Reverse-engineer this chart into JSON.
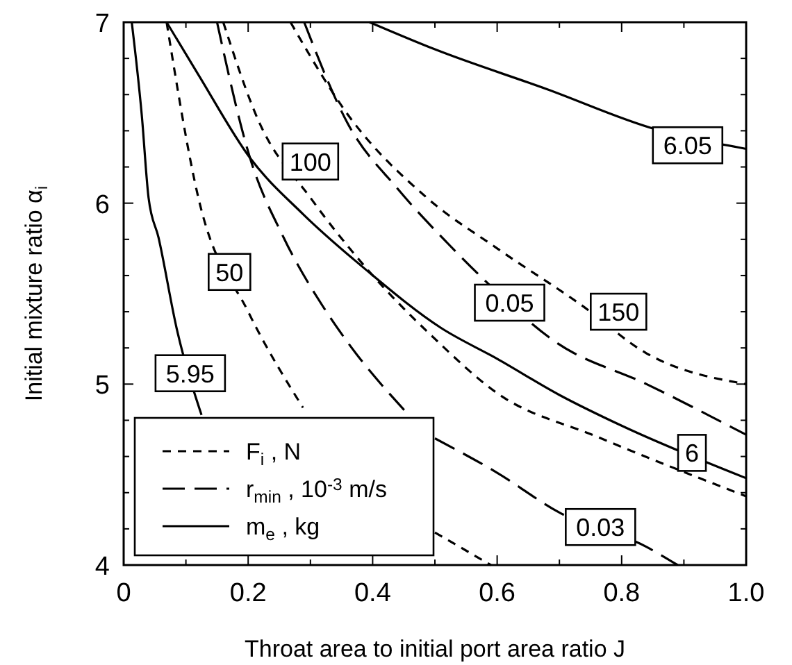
{
  "chart_data": {
    "type": "line",
    "xlabel": "Throat area to initial port area ratio  J",
    "ylabel": "Initial mixture ratio  α$_{i}$",
    "xlim": [
      0,
      1
    ],
    "ylim": [
      4,
      7
    ],
    "xticks": [
      0,
      {
        "value": 0.1,
        "label": null
      },
      0.2,
      {
        "value": 0.3,
        "label": null
      },
      0.4,
      {
        "value": 0.5,
        "label": null
      },
      0.6,
      {
        "value": 0.7,
        "label": null
      },
      0.8,
      {
        "value": 0.9,
        "label": null
      },
      {
        "value": 1,
        "label": "1.0"
      }
    ],
    "yticks": [
      4,
      {
        "value": 4.2,
        "label": null
      },
      {
        "value": 4.4,
        "label": null
      },
      {
        "value": 4.6,
        "label": null
      },
      {
        "value": 4.8,
        "label": null
      },
      5,
      {
        "value": 5.2,
        "label": null
      },
      {
        "value": 5.4,
        "label": null
      },
      {
        "value": 5.6,
        "label": null
      },
      {
        "value": 5.8,
        "label": null
      },
      6,
      {
        "value": 6.2,
        "label": null
      },
      {
        "value": 6.4,
        "label": null
      },
      {
        "value": 6.6,
        "label": null
      },
      {
        "value": 6.8,
        "label": null
      },
      7
    ],
    "grid": false,
    "legend": "bottom left",
    "series": [
      {
        "name": "F$_{i}$ , N",
        "color": "#000000",
        "line_style": "dashed",
        "x": [
          0.069,
          0.12,
          0.2,
          0.288,
          0.4,
          0.5,
          0.59
        ],
        "values": [
          7,
          6.03,
          5.4,
          4.87,
          null,
          4.18,
          4
        ]
      },
      {
        "color": "#000000",
        "line_style": "dashed",
        "x": [
          0.16,
          0.216,
          0.3,
          0.39,
          0.5,
          0.6,
          0.76,
          1
        ],
        "values": [
          7,
          6.46,
          6.03,
          5.64,
          5.25,
          4.95,
          4.71,
          4.38
        ]
      },
      {
        "color": "#000000",
        "line_style": "dashed",
        "x": [
          0.268,
          0.36,
          0.487,
          0.6,
          0.734,
          0.84,
          1
        ],
        "values": [
          7,
          6.49,
          6.03,
          5.75,
          5.44,
          5.17,
          5
        ]
      },
      {
        "name": "r$_{min}$ , 10$^{-3}$ m/s",
        "color": "#000000",
        "line_style": "longdash",
        "x": [
          0.15,
          0.203,
          0.257,
          0.32,
          0.36,
          0.455,
          0.48,
          0.5,
          0.6,
          0.7,
          0.84,
          0.89
        ],
        "values": [
          7,
          6.25,
          5.81,
          5.43,
          5.23,
          4.84,
          null,
          4.7,
          4.51,
          4.29,
          4.1,
          4
        ]
      },
      {
        "color": "#000000",
        "line_style": "longdash",
        "x": [
          0.29,
          0.36,
          0.44,
          0.52,
          0.575,
          0.695,
          0.84,
          1
        ],
        "values": [
          7,
          6.44,
          6.08,
          5.78,
          5.59,
          5.23,
          5,
          4.72
        ]
      },
      {
        "name": "m$_{e}$ , kg",
        "color": "#000000",
        "line_style": "solid",
        "x": [
          0.013,
          0.029,
          0.04,
          0.056,
          0.085,
          0.125
        ],
        "values": [
          7,
          6.49,
          6.03,
          5.81,
          5.31,
          4.83
        ]
      },
      {
        "color": "#000000",
        "line_style": "solid",
        "x": [
          0.069,
          0.12,
          0.203,
          0.288,
          0.39,
          0.51,
          0.6,
          0.7,
          0.8,
          1
        ],
        "values": [
          7,
          6.71,
          6.25,
          5.94,
          5.63,
          5.31,
          5.14,
          4.94,
          4.77,
          4.48
        ]
      },
      {
        "color": "#000000",
        "line_style": "solid",
        "x": [
          0.395,
          0.5,
          0.68,
          0.853,
          1
        ],
        "values": [
          7,
          6.85,
          6.63,
          6.41,
          6.3
        ]
      }
    ],
    "annotations": [
      {
        "text": "50",
        "x": 0.17,
        "y": 5.62
      },
      {
        "text": "100",
        "x": 0.3,
        "y": 6.23
      },
      {
        "text": "150",
        "x": 0.795,
        "y": 5.4
      },
      {
        "text": "0.03",
        "x": 0.766,
        "y": 4.21
      },
      {
        "text": "0.05",
        "x": 0.62,
        "y": 5.45
      },
      {
        "text": "5.95",
        "x": 0.107,
        "y": 5.06
      },
      {
        "text": "6",
        "x": 0.913,
        "y": 4.62
      },
      {
        "text": "6.05",
        "x": 0.906,
        "y": 6.32
      }
    ]
  }
}
